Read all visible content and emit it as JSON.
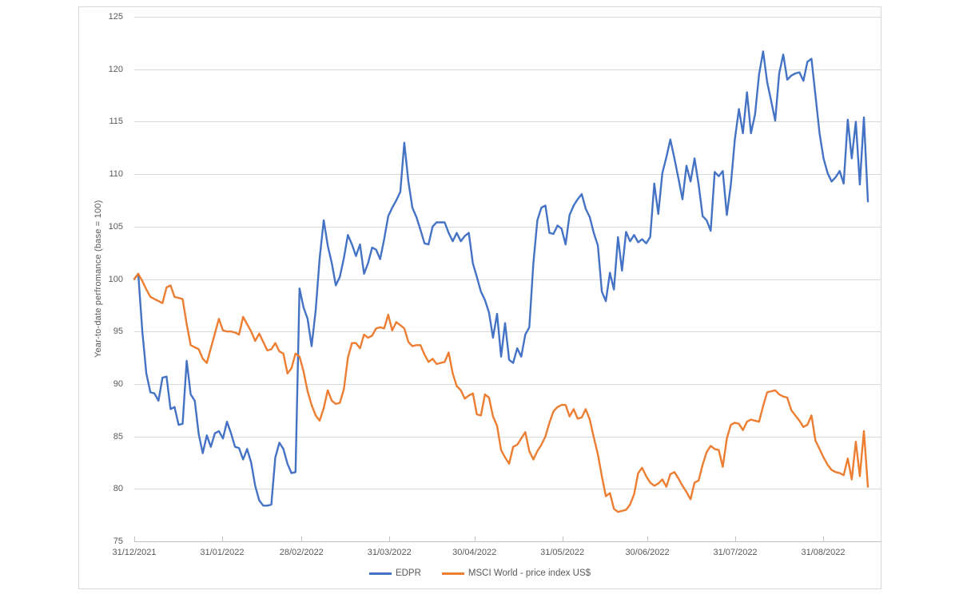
{
  "chart": {
    "y_axis_title": "Year-to-date perfromance (base = 100)",
    "legend": [
      {
        "label": "EDPR",
        "color": "#4472C4"
      },
      {
        "label": "MSCI World - price index US$",
        "color": "#ED7D31"
      }
    ]
  },
  "chart_data": {
    "type": "line",
    "title": "",
    "xlabel": "",
    "ylabel": "Year-to-date perfromance (base = 100)",
    "ylim": [
      75,
      125
    ],
    "y_ticks": [
      75,
      80,
      85,
      90,
      95,
      100,
      105,
      110,
      115,
      120,
      125
    ],
    "x_tick_labels": [
      "31/12/2021",
      "31/01/2022",
      "28/02/2022",
      "31/03/2022",
      "30/04/2022",
      "31/05/2022",
      "30/06/2022",
      "31/07/2022",
      "31/08/2022"
    ],
    "x_tick_day_offsets": [
      0,
      31,
      59,
      90,
      120,
      151,
      181,
      212,
      243
    ],
    "grid": true,
    "legend_position": "bottom",
    "colors": {
      "gridline": "#D9D9D9",
      "axis_line": "#BFBFBF",
      "tick_text": "#595959",
      "frame_border": "#D9D9D9"
    },
    "series": [
      {
        "name": "EDPR",
        "color": "#4472C4",
        "values": [
          100.0,
          100.5,
          95.0,
          91.0,
          89.2,
          89.1,
          88.4,
          90.6,
          90.7,
          87.6,
          87.8,
          86.1,
          86.2,
          92.2,
          89.0,
          88.4,
          85.2,
          83.4,
          85.1,
          84.0,
          85.3,
          85.5,
          84.8,
          86.4,
          85.3,
          84.0,
          83.9,
          82.8,
          83.8,
          82.5,
          80.3,
          78.9,
          78.4,
          78.4,
          78.5,
          83.0,
          84.4,
          83.8,
          82.4,
          81.5,
          81.6,
          99.1,
          97.3,
          96.2,
          93.6,
          97.0,
          102.0,
          105.6,
          103.2,
          101.5,
          99.4,
          100.2,
          102.0,
          104.2,
          103.3,
          102.2,
          103.3,
          100.5,
          101.5,
          103.0,
          102.8,
          101.9,
          103.8,
          106.0,
          106.8,
          107.5,
          108.3,
          113.0,
          109.3,
          106.8,
          105.9,
          104.7,
          103.4,
          103.3,
          105.0,
          105.4,
          105.4,
          105.4,
          104.4,
          103.6,
          104.4,
          103.6,
          104.1,
          104.4,
          101.5,
          100.2,
          98.8,
          98.0,
          96.8,
          94.4,
          96.7,
          92.6,
          95.8,
          92.3,
          92.0,
          93.4,
          92.6,
          94.7,
          95.4,
          101.5,
          105.6,
          106.8,
          107.0,
          104.4,
          104.3,
          105.1,
          104.8,
          103.3,
          106.1,
          107.0,
          107.6,
          108.1,
          106.7,
          105.9,
          104.4,
          103.2,
          98.8,
          97.9,
          100.6,
          99.0,
          104.0,
          100.8,
          104.5,
          103.6,
          104.2,
          103.5,
          103.8,
          103.4,
          104.0,
          109.1,
          106.2,
          110.1,
          111.6,
          113.3,
          111.5,
          109.6,
          107.6,
          110.8,
          109.3,
          111.5,
          109.0,
          106.0,
          105.6,
          104.6,
          110.2,
          109.8,
          110.3,
          106.1,
          109.0,
          113.3,
          116.2,
          113.9,
          117.8,
          113.9,
          115.7,
          119.5,
          121.7,
          118.8,
          117.0,
          115.1,
          119.6,
          121.4,
          119.0,
          119.4,
          119.6,
          119.7,
          118.9,
          120.7,
          121.0,
          117.5,
          113.9,
          111.5,
          110.1,
          109.3,
          109.7,
          110.3,
          109.1,
          115.2,
          111.5,
          115.0,
          109.0,
          115.4,
          107.4
        ]
      },
      {
        "name": "MSCI World - price index US$",
        "color": "#ED7D31",
        "values": [
          100.0,
          100.5,
          99.8,
          99.0,
          98.3,
          98.1,
          97.9,
          97.7,
          99.2,
          99.4,
          98.3,
          98.2,
          98.1,
          95.7,
          93.7,
          93.5,
          93.3,
          92.4,
          92.0,
          93.4,
          94.8,
          96.2,
          95.1,
          95.0,
          95.0,
          94.9,
          94.7,
          96.4,
          95.7,
          95.0,
          94.1,
          94.8,
          94.0,
          93.2,
          93.3,
          93.9,
          93.1,
          92.9,
          91.0,
          91.5,
          92.9,
          92.6,
          91.2,
          89.3,
          88.0,
          87.0,
          86.5,
          87.7,
          89.4,
          88.4,
          88.1,
          88.2,
          89.5,
          92.5,
          93.9,
          93.9,
          93.4,
          94.7,
          94.4,
          94.6,
          95.3,
          95.4,
          95.3,
          96.6,
          95.1,
          95.9,
          95.6,
          95.3,
          94.0,
          93.6,
          93.7,
          93.7,
          92.8,
          92.1,
          92.4,
          91.9,
          92.0,
          92.1,
          93.0,
          91.0,
          89.8,
          89.4,
          88.6,
          88.9,
          89.1,
          87.1,
          87.0,
          89.0,
          88.7,
          86.9,
          86.0,
          83.7,
          83.0,
          82.4,
          84.0,
          84.2,
          84.8,
          85.4,
          83.6,
          82.8,
          83.6,
          84.2,
          85.0,
          86.3,
          87.4,
          87.8,
          88.0,
          88.0,
          86.9,
          87.6,
          86.7,
          86.8,
          87.6,
          86.6,
          84.9,
          83.3,
          81.2,
          79.3,
          79.6,
          78.1,
          77.8,
          77.9,
          78.0,
          78.5,
          79.5,
          81.5,
          82.0,
          81.2,
          80.6,
          80.3,
          80.5,
          80.9,
          80.2,
          81.4,
          81.6,
          81.0,
          80.3,
          79.7,
          79.0,
          80.6,
          80.8,
          82.3,
          83.5,
          84.1,
          83.8,
          83.7,
          82.1,
          84.8,
          86.1,
          86.3,
          86.2,
          85.6,
          86.4,
          86.6,
          86.5,
          86.4,
          87.9,
          89.2,
          89.3,
          89.4,
          89.0,
          88.8,
          88.7,
          87.5,
          87.0,
          86.5,
          85.9,
          86.1,
          87.0,
          84.6,
          83.8,
          83.0,
          82.3,
          81.8,
          81.6,
          81.5,
          81.3,
          82.9,
          80.9,
          84.5,
          81.2,
          85.5,
          80.2
        ]
      }
    ]
  }
}
